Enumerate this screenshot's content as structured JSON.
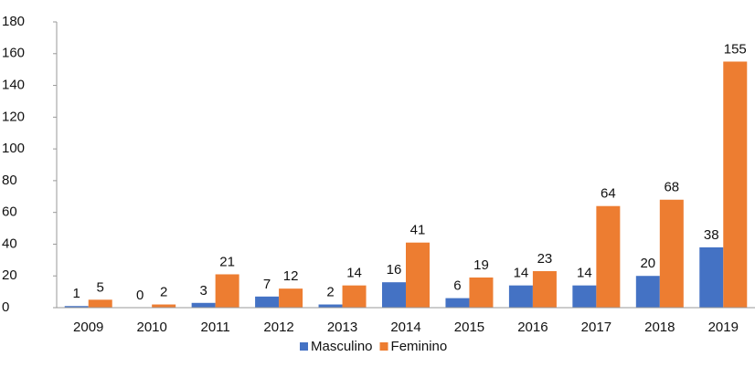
{
  "chart_data": {
    "type": "bar",
    "categories": [
      "2009",
      "2010",
      "2011",
      "2012",
      "2013",
      "2014",
      "2015",
      "2016",
      "2017",
      "2018",
      "2019"
    ],
    "series": [
      {
        "name": "Masculino",
        "color": "#4472c4",
        "values": [
          1,
          0,
          3,
          7,
          2,
          16,
          6,
          14,
          14,
          20,
          38
        ]
      },
      {
        "name": "Feminino",
        "color": "#ed7d31",
        "values": [
          5,
          2,
          21,
          12,
          14,
          41,
          19,
          23,
          64,
          68,
          155
        ]
      }
    ],
    "ylim": [
      0,
      180
    ],
    "yticks": [
      0,
      20,
      40,
      60,
      80,
      100,
      120,
      140,
      160,
      180
    ],
    "grid": false,
    "legend": "bottom"
  }
}
